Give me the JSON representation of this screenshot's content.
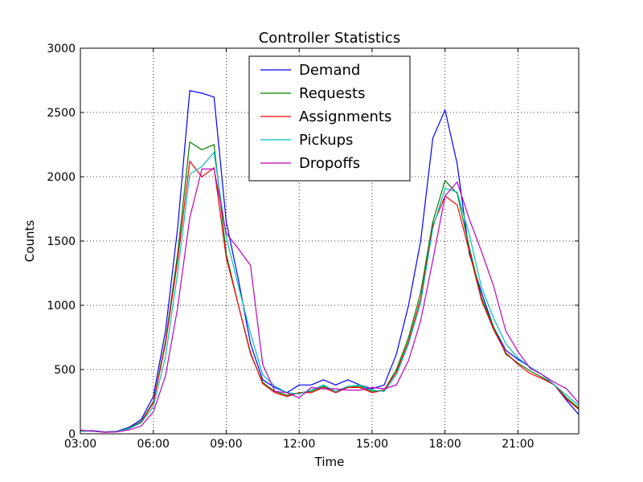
{
  "chart_data": {
    "type": "line",
    "title": "Controller Statistics",
    "xlabel": "Time",
    "ylabel": "Counts",
    "xlim": [
      "03:00",
      "23:30"
    ],
    "ylim": [
      0,
      3000
    ],
    "x_ticks": [
      "03:00",
      "06:00",
      "09:00",
      "12:00",
      "15:00",
      "18:00",
      "21:00"
    ],
    "y_ticks": [
      0,
      500,
      1000,
      1500,
      2000,
      2500,
      3000
    ],
    "grid": true,
    "legend_position": "top-center",
    "x": [
      "03:00",
      "03:30",
      "04:00",
      "04:30",
      "05:00",
      "05:30",
      "06:00",
      "06:30",
      "07:00",
      "07:30",
      "08:00",
      "08:30",
      "09:00",
      "09:30",
      "10:00",
      "10:30",
      "11:00",
      "11:30",
      "12:00",
      "12:30",
      "13:00",
      "13:30",
      "14:00",
      "14:30",
      "15:00",
      "15:30",
      "16:00",
      "16:30",
      "17:00",
      "17:30",
      "18:00",
      "18:30",
      "19:00",
      "19:30",
      "20:00",
      "20:30",
      "21:00",
      "21:30",
      "22:00",
      "22:30",
      "23:00",
      "23:30"
    ],
    "series": [
      {
        "name": "Demand",
        "color": "#0000ff",
        "values": [
          20,
          25,
          15,
          20,
          50,
          110,
          290,
          800,
          1600,
          2670,
          2650,
          2620,
          1650,
          1200,
          700,
          420,
          360,
          320,
          380,
          380,
          420,
          380,
          420,
          380,
          350,
          380,
          620,
          1000,
          1500,
          2300,
          2520,
          2100,
          1400,
          1100,
          830,
          650,
          580,
          520,
          460,
          380,
          260,
          150
        ]
      },
      {
        "name": "Requests",
        "color": "#008000",
        "values": [
          20,
          22,
          14,
          18,
          45,
          95,
          250,
          720,
          1400,
          2270,
          2210,
          2250,
          1400,
          1000,
          620,
          400,
          330,
          300,
          320,
          330,
          370,
          330,
          360,
          370,
          330,
          340,
          500,
          750,
          1100,
          1650,
          1970,
          1870,
          1450,
          1060,
          830,
          620,
          550,
          490,
          440,
          380,
          280,
          200
        ]
      },
      {
        "name": "Assignments",
        "color": "#ff0000",
        "values": [
          20,
          22,
          14,
          18,
          40,
          90,
          240,
          700,
          1350,
          2120,
          2000,
          2070,
          1370,
          1000,
          630,
          390,
          320,
          290,
          320,
          320,
          360,
          320,
          360,
          360,
          320,
          340,
          480,
          720,
          1050,
          1620,
          1850,
          1780,
          1420,
          1040,
          810,
          630,
          540,
          470,
          430,
          380,
          270,
          190
        ]
      },
      {
        "name": "Pickups",
        "color": "#00bfbf",
        "values": [
          20,
          22,
          14,
          18,
          40,
          85,
          210,
          600,
          1250,
          2020,
          2080,
          2190,
          1530,
          1150,
          780,
          460,
          370,
          320,
          310,
          340,
          380,
          330,
          370,
          380,
          340,
          330,
          460,
          700,
          1020,
          1600,
          1910,
          1880,
          1550,
          1140,
          900,
          700,
          590,
          520,
          460,
          380,
          300,
          220
        ]
      },
      {
        "name": "Dropoffs",
        "color": "#bf00bf",
        "values": [
          30,
          20,
          12,
          15,
          30,
          60,
          170,
          450,
          980,
          1680,
          2060,
          2060,
          1560,
          1440,
          1310,
          540,
          330,
          320,
          280,
          360,
          350,
          350,
          340,
          340,
          360,
          350,
          380,
          570,
          880,
          1350,
          1850,
          1960,
          1670,
          1420,
          1150,
          800,
          640,
          510,
          460,
          400,
          350,
          240
        ]
      }
    ]
  }
}
